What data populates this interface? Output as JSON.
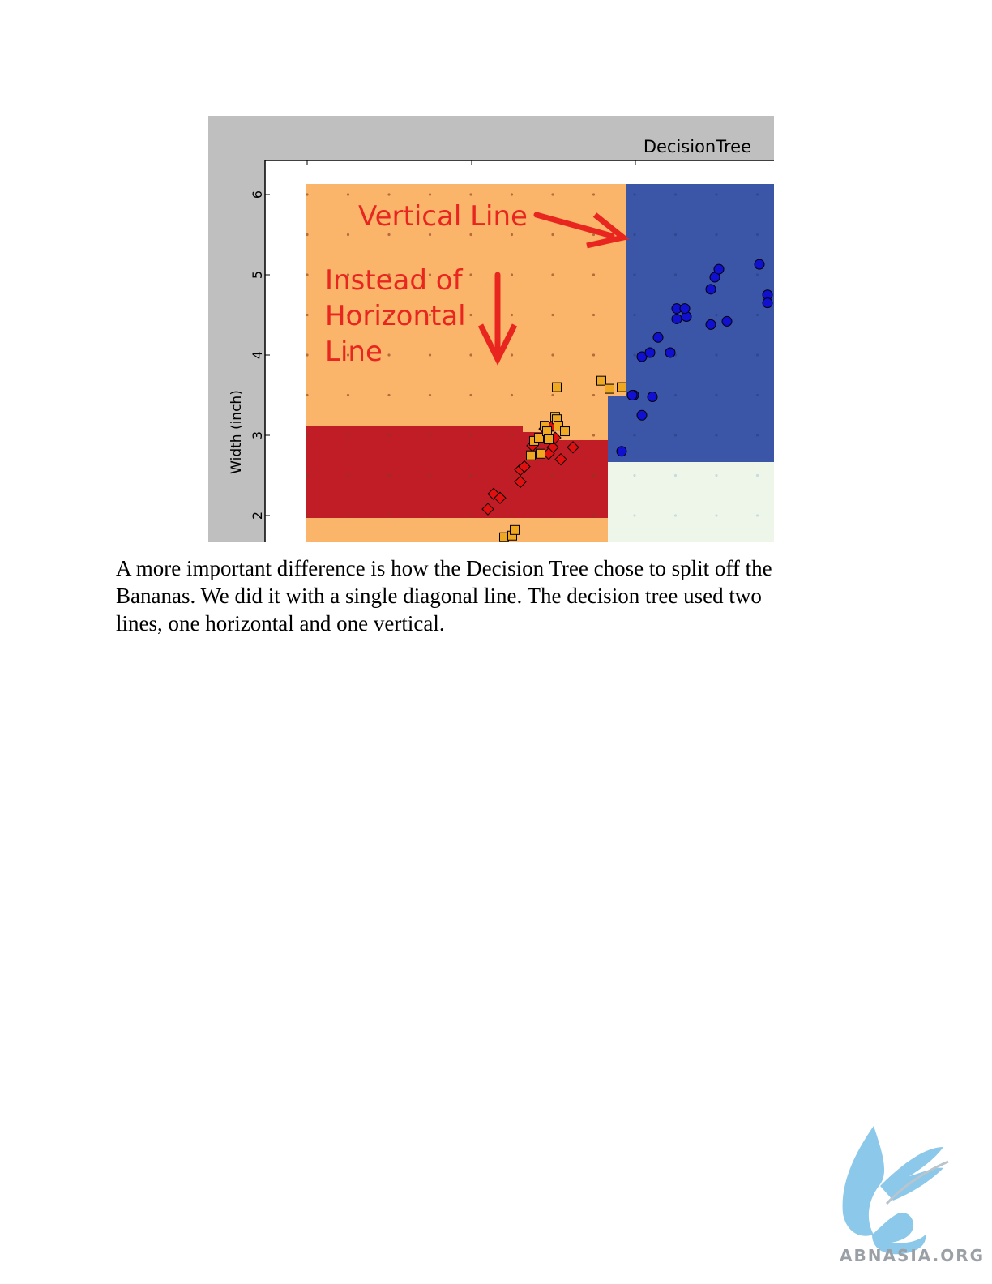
{
  "figure": {
    "title": "DecisionTree",
    "ylabel": "Width (inch)",
    "annotations": {
      "vertical_line": "Vertical Line",
      "instead_line1": "Instead of",
      "instead_line2": "Horizontal",
      "instead_line3": "Line"
    },
    "colors": {
      "orange_region": "#fbb56b",
      "red_region": "#c11d26",
      "blue_region": "#3b56a6",
      "light_region": "#eef6ea",
      "annotation_red": "#e8261f",
      "figure_bg": "#bfbfbf"
    }
  },
  "chart_data": {
    "type": "scatter",
    "title": "DecisionTree",
    "xlabel": "",
    "ylabel": "Width (inch)",
    "yticks": [
      2,
      3,
      4,
      5,
      6
    ],
    "series": [
      {
        "marker": "circle",
        "color": "#1010d0",
        "points": [
          [
            1.2,
            2.8
          ],
          [
            1.45,
            3.25
          ],
          [
            1.35,
            3.5
          ],
          [
            1.33,
            3.5
          ],
          [
            1.58,
            3.48
          ],
          [
            1.45,
            3.98
          ],
          [
            1.55,
            4.03
          ],
          [
            1.8,
            4.03
          ],
          [
            1.65,
            4.22
          ],
          [
            1.88,
            4.45
          ],
          [
            1.88,
            4.58
          ],
          [
            2.0,
            4.48
          ],
          [
            1.98,
            4.58
          ],
          [
            2.3,
            4.38
          ],
          [
            2.5,
            4.42
          ],
          [
            2.3,
            4.82
          ],
          [
            2.35,
            4.97
          ],
          [
            2.4,
            5.07
          ],
          [
            2.9,
            5.13
          ],
          [
            3.0,
            4.75
          ],
          [
            3.0,
            4.65
          ]
        ]
      },
      {
        "marker": "diamond",
        "color": "#e01010",
        "points": [
          [
            -0.45,
            2.08
          ],
          [
            -0.38,
            2.27
          ],
          [
            -0.3,
            2.22
          ],
          [
            -0.05,
            2.42
          ],
          [
            -0.05,
            2.57
          ],
          [
            0.0,
            2.61
          ],
          [
            0.1,
            2.87
          ],
          [
            0.38,
            2.97
          ],
          [
            0.35,
            2.85
          ],
          [
            0.25,
            3.08
          ],
          [
            0.3,
            2.77
          ],
          [
            0.45,
            2.7
          ],
          [
            0.6,
            2.85
          ],
          [
            0.35,
            3.12
          ]
        ]
      },
      {
        "marker": "square",
        "color": "#f0a820",
        "points": [
          [
            -0.25,
            1.73
          ],
          [
            -0.15,
            1.75
          ],
          [
            -0.12,
            1.82
          ],
          [
            0.08,
            2.75
          ],
          [
            0.12,
            2.93
          ],
          [
            0.2,
            2.77
          ],
          [
            0.18,
            2.97
          ],
          [
            0.25,
            3.12
          ],
          [
            0.28,
            3.05
          ],
          [
            0.3,
            2.95
          ],
          [
            0.38,
            3.23
          ],
          [
            0.4,
            3.2
          ],
          [
            0.42,
            3.12
          ],
          [
            0.5,
            3.05
          ],
          [
            0.4,
            3.6
          ],
          [
            0.95,
            3.68
          ],
          [
            1.05,
            3.58
          ],
          [
            1.2,
            3.6
          ]
        ]
      }
    ],
    "regions": [
      {
        "class": "orange",
        "note": "background region"
      },
      {
        "class": "red",
        "note": "lower-left split regions"
      },
      {
        "class": "blue",
        "note": "upper-right region"
      },
      {
        "class": "light",
        "note": "lower-right region"
      }
    ],
    "grid": false
  },
  "caption": {
    "line1": "A more important difference is how the Decision Tree chose to split off the",
    "line2": "Bananas.   We did it with a single diagonal line.   The decision tree used two",
    "line3": "lines, one horizontal and one vertical."
  },
  "logo": {
    "text": "ABNASIA.ORG",
    "color": "#8cc8ea"
  }
}
